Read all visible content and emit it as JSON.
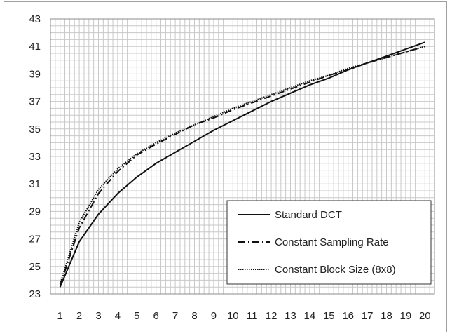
{
  "chart_data": {
    "type": "line",
    "title": "",
    "xlabel": "",
    "ylabel": "",
    "x": [
      1,
      2,
      3,
      4,
      5,
      6,
      7,
      8,
      9,
      10,
      11,
      12,
      13,
      14,
      15,
      16,
      17,
      18,
      19,
      20
    ],
    "xlim": [
      0.5,
      20.5
    ],
    "ylim": [
      23,
      43
    ],
    "yticks": [
      23,
      25,
      27,
      29,
      31,
      33,
      35,
      37,
      39,
      41,
      43
    ],
    "xticks": [
      1,
      2,
      3,
      4,
      5,
      6,
      7,
      8,
      9,
      10,
      11,
      12,
      13,
      14,
      15,
      16,
      17,
      18,
      19,
      20
    ],
    "grid": true,
    "legend_position": "bottom-right",
    "series": [
      {
        "name": "Standard DCT",
        "style": "solid",
        "values": [
          23.5,
          26.8,
          28.8,
          30.3,
          31.5,
          32.5,
          33.3,
          34.1,
          34.9,
          35.6,
          36.3,
          37.0,
          37.6,
          38.2,
          38.7,
          39.3,
          39.8,
          40.3,
          40.8,
          41.3
        ]
      },
      {
        "name": "Constant Sampling Rate",
        "style": "dashdot",
        "values": [
          23.6,
          27.8,
          30.3,
          31.9,
          33.1,
          33.9,
          34.6,
          35.3,
          35.8,
          36.4,
          36.9,
          37.4,
          37.9,
          38.4,
          38.9,
          39.3,
          39.8,
          40.2,
          40.6,
          41.0
        ]
      },
      {
        "name": "Constant Block Size (8x8)",
        "style": "dotted",
        "values": [
          23.7,
          28.2,
          30.6,
          32.1,
          33.2,
          34.0,
          34.7,
          35.3,
          35.9,
          36.5,
          37.0,
          37.5,
          38.0,
          38.5,
          38.9,
          39.4,
          39.8,
          40.2,
          40.6,
          41.0
        ]
      }
    ]
  }
}
